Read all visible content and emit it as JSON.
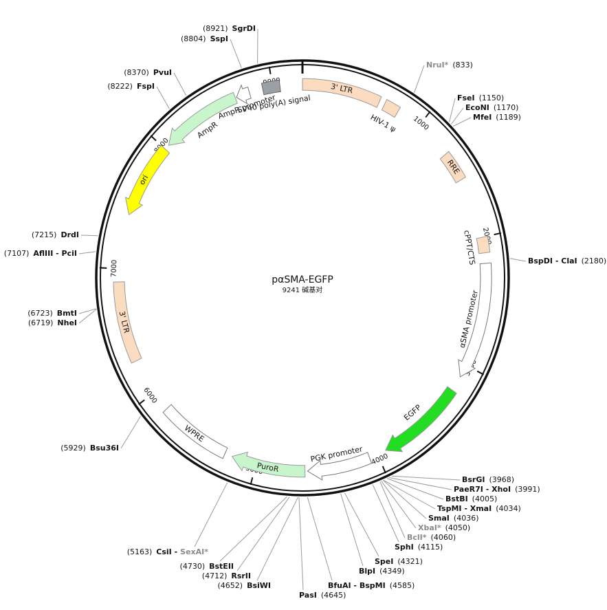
{
  "plasmid": {
    "name": "pαSMA-EGFP",
    "size_label": "9241 碱基对",
    "length": 9241,
    "ticks": [
      1000,
      2000,
      3000,
      4000,
      5000,
      6000,
      7000,
      8000,
      9000
    ],
    "features": [
      {
        "name": "3' LTR",
        "start": 0,
        "end": 634,
        "direction": "none",
        "color": "#fbdcc0"
      },
      {
        "name": "HIV-1 ψ",
        "start": 680,
        "end": 800,
        "direction": "none",
        "color": "#fbdcc0"
      },
      {
        "name": "RRE",
        "start": 1300,
        "end": 1530,
        "direction": "none",
        "color": "#fbdcc0"
      },
      {
        "name": "cPPT/CTS",
        "start": 2000,
        "end": 2120,
        "direction": "none",
        "color": "#fbdcc0"
      },
      {
        "name": "αSMA promoter",
        "start": 2200,
        "end": 3100,
        "direction": "forward",
        "color": "#ffffff"
      },
      {
        "name": "EGFP",
        "start": 3220,
        "end": 3930,
        "direction": "forward",
        "color": "#22dd22"
      },
      {
        "name": "PGK promoter",
        "start": 4070,
        "end": 4580,
        "direction": "forward",
        "color": "#ffffff"
      },
      {
        "name": "PuroR",
        "start": 4600,
        "end": 5200,
        "direction": "forward",
        "color": "#c9f5cc"
      },
      {
        "name": "WPRE",
        "start": 5260,
        "end": 5840,
        "direction": "none",
        "color": "#ffffff"
      },
      {
        "name": "3' LTR",
        "start": 6280,
        "end": 6900,
        "direction": "none",
        "color": "#fbdcc0"
      },
      {
        "name": "ori",
        "start": 7420,
        "end": 8000,
        "direction": "reverse",
        "color": "#ffff00"
      },
      {
        "name": "AmpR",
        "start": 8040,
        "end": 8690,
        "direction": "reverse",
        "color": "#c9f5cc"
      },
      {
        "name": "AmpR promoter",
        "start": 8700,
        "end": 8810,
        "direction": "reverse",
        "color": "#ffffff"
      },
      {
        "name": "SV40 poly(A) signal",
        "start": 8920,
        "end": 9060,
        "direction": "none",
        "color": "#9aa0a6"
      }
    ],
    "sites": [
      {
        "name": "NruI*",
        "position": "(833)",
        "gray": true
      },
      {
        "name": "FseI",
        "position": "(1150)",
        "gray": false
      },
      {
        "name": "EcoNI",
        "position": "(1170)",
        "gray": false
      },
      {
        "name": "MfeI",
        "position": "(1189)",
        "gray": false
      },
      {
        "name": "BspDI - ClaI",
        "position": "(2180)",
        "gray": false
      },
      {
        "name": "BsrGI",
        "position": "(3968)",
        "gray": false
      },
      {
        "name": "PaeR7I - XhoI",
        "position": "(3991)",
        "gray": false
      },
      {
        "name": "BstBI",
        "position": "(4005)",
        "gray": false
      },
      {
        "name": "TspMI - XmaI",
        "position": "(4034)",
        "gray": false
      },
      {
        "name": "SmaI",
        "position": "(4036)",
        "gray": false
      },
      {
        "name": "XbaI*",
        "position": "(4050)",
        "gray": true
      },
      {
        "name": "BclI*",
        "position": "(4060)",
        "gray": true
      },
      {
        "name": "SphI",
        "position": "(4115)",
        "gray": false
      },
      {
        "name": "SpeI",
        "position": "(4321)",
        "gray": false
      },
      {
        "name": "BlpI",
        "position": "(4349)",
        "gray": false
      },
      {
        "name": "BfuAI - BspMI",
        "position": "(4585)",
        "gray": false
      },
      {
        "name": "PasI",
        "position": "(4645)",
        "gray": false
      },
      {
        "name": "BsiWI",
        "position": "(4652)",
        "gray": false
      },
      {
        "name": "RsrII",
        "position": "(4712)",
        "gray": false
      },
      {
        "name": "BstEII",
        "position": "(4730)",
        "gray": false
      },
      {
        "name": "CsiI -",
        "alt_name": "SexAI*",
        "position": "(5163)",
        "gray": false
      },
      {
        "name": "Bsu36I",
        "position": "(5929)",
        "gray": false
      },
      {
        "name": "NheI",
        "position": "(6719)",
        "gray": false
      },
      {
        "name": "BmtI",
        "position": "(6723)",
        "gray": false
      },
      {
        "name": "AflIII - PciI",
        "position": "(7107)",
        "gray": false
      },
      {
        "name": "DrdI",
        "position": "(7215)",
        "gray": false
      },
      {
        "name": "FspI",
        "position": "(8222)",
        "gray": false
      },
      {
        "name": "PvuI",
        "position": "(8370)",
        "gray": false
      },
      {
        "name": "SspI",
        "position": "(8804)",
        "gray": false
      },
      {
        "name": "SgrDI",
        "position": "(8921)",
        "gray": false
      }
    ]
  }
}
